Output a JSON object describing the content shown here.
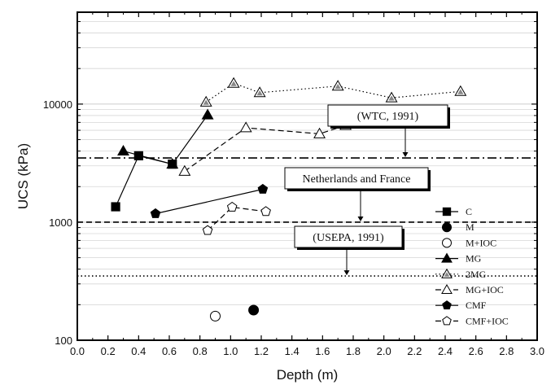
{
  "chart_data": {
    "type": "scatter",
    "xlabel": "Depth (m)",
    "ylabel": "UCS (kPa)",
    "xlim": [
      0.0,
      3.0
    ],
    "ylim": [
      100,
      60000
    ],
    "y_scale": "log",
    "grid": "horizontal-minor",
    "legend_placement": "bottom-right",
    "x_ticks": [
      "0.0",
      "0.2",
      "0.4",
      "0.6",
      "0.8",
      "1.0",
      "1.2",
      "1.4",
      "1.6",
      "1.8",
      "2.0",
      "2.2",
      "2.4",
      "2.6",
      "2.8",
      "3.0"
    ],
    "y_ticks": [
      {
        "value": 100,
        "label": "100"
      },
      {
        "value": 1000,
        "label": "1000"
      },
      {
        "value": 10000,
        "label": "10000"
      }
    ],
    "series": [
      {
        "name": "C",
        "marker": "square",
        "filled": true,
        "line": "solid",
        "points": [
          [
            0.25,
            1350
          ],
          [
            0.4,
            3650
          ],
          [
            0.62,
            3100
          ]
        ]
      },
      {
        "name": "M",
        "marker": "circle",
        "filled": true,
        "line": "none",
        "points": [
          [
            1.15,
            180
          ]
        ]
      },
      {
        "name": "M+IOC",
        "marker": "circle",
        "filled": false,
        "line": "none",
        "points": [
          [
            0.9,
            160
          ]
        ]
      },
      {
        "name": "MG",
        "marker": "triangle",
        "filled": true,
        "line": "solid",
        "points": [
          [
            0.3,
            4000
          ],
          [
            0.62,
            3100
          ],
          [
            0.85,
            8100
          ]
        ]
      },
      {
        "name": "2MG",
        "marker": "triangle-gray",
        "filled": false,
        "line": "dotted",
        "points": [
          [
            0.84,
            10400
          ],
          [
            1.02,
            15000
          ],
          [
            1.19,
            12500
          ],
          [
            1.7,
            14200
          ],
          [
            2.05,
            11300
          ],
          [
            2.5,
            12800
          ]
        ]
      },
      {
        "name": "MG+IOC",
        "marker": "triangle",
        "filled": false,
        "line": "dashed",
        "points": [
          [
            0.7,
            2700
          ],
          [
            1.1,
            6300
          ],
          [
            1.58,
            5600
          ],
          [
            1.75,
            6600
          ]
        ]
      },
      {
        "name": "CMF",
        "marker": "pentagon",
        "filled": true,
        "line": "solid",
        "points": [
          [
            0.51,
            1180
          ],
          [
            1.21,
            1900
          ]
        ]
      },
      {
        "name": "CMF+IOC",
        "marker": "pentagon",
        "filled": false,
        "line": "dashed",
        "points": [
          [
            0.85,
            850
          ],
          [
            1.01,
            1340
          ],
          [
            1.23,
            1230
          ]
        ]
      }
    ],
    "reference_lines": [
      {
        "label": "(WTC, 1991)",
        "value": 3500,
        "style": "dashdot"
      },
      {
        "label": "Netherlands and France",
        "value": 1000,
        "style": "dashed"
      },
      {
        "label": "(USEPA, 1991)",
        "value": 350,
        "style": "dotted"
      }
    ]
  }
}
